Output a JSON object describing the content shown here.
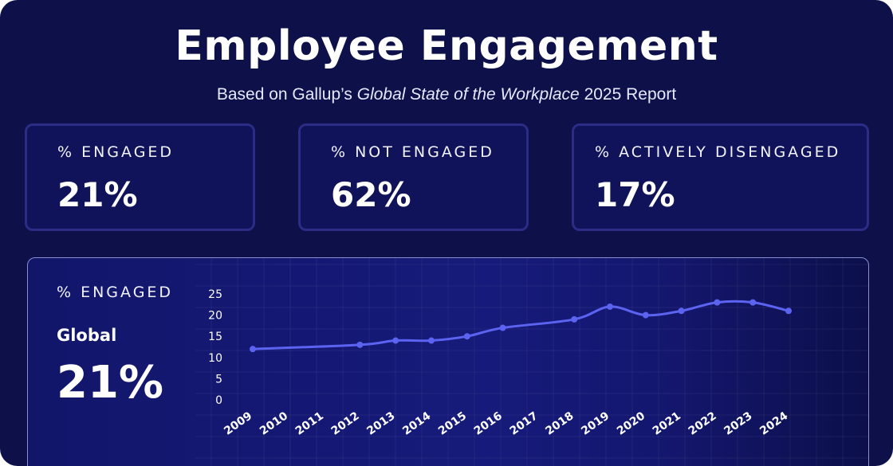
{
  "header": {
    "title": "Employee Engagement",
    "subtitle_prefix": "Based on Gallup’s ",
    "subtitle_italic": "Global State of the Workplace",
    "subtitle_suffix": " 2025 Report"
  },
  "stats": [
    {
      "label": "% ENGAGED",
      "value": "21%"
    },
    {
      "label": "% NOT ENGAGED",
      "value": "62%"
    },
    {
      "label": "% ACTIVELY DISENGAGED",
      "value": "17%"
    }
  ],
  "panel": {
    "label": "% ENGAGED",
    "region": "Global",
    "value": "21%"
  },
  "colors": {
    "background": "#0d1049",
    "line": "#5b63f0",
    "card_border": "#2c2c86"
  },
  "chart_data": {
    "type": "line",
    "title": "",
    "xlabel": "",
    "ylabel": "",
    "x": [
      "2009",
      "2010",
      "2011",
      "2012",
      "2013",
      "2014",
      "2015",
      "2016",
      "2017",
      "2018",
      "2019",
      "2020",
      "2021",
      "2022",
      "2023",
      "2024"
    ],
    "points": [
      {
        "x": "2009",
        "y": 12
      },
      {
        "x": "2012",
        "y": 13
      },
      {
        "x": "2013",
        "y": 14
      },
      {
        "x": "2014",
        "y": 14
      },
      {
        "x": "2015",
        "y": 15
      },
      {
        "x": "2016",
        "y": 17
      },
      {
        "x": "2018",
        "y": 19
      },
      {
        "x": "2019",
        "y": 22
      },
      {
        "x": "2020",
        "y": 20
      },
      {
        "x": "2021",
        "y": 21
      },
      {
        "x": "2022",
        "y": 23
      },
      {
        "x": "2023",
        "y": 23
      },
      {
        "x": "2024",
        "y": 21
      }
    ],
    "yticks": [
      0,
      5,
      10,
      15,
      20,
      25
    ],
    "ylim": [
      0,
      25
    ],
    "grid": true,
    "legend": "none"
  }
}
